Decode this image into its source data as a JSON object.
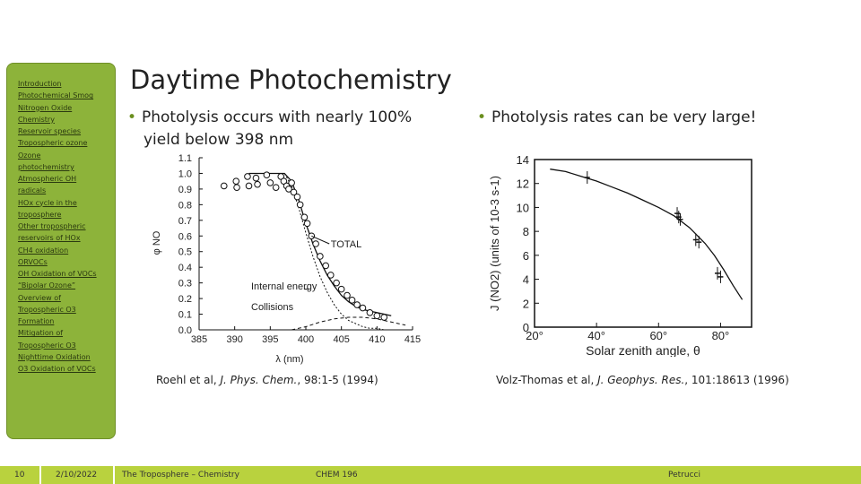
{
  "sidebar": {
    "items": [
      {
        "label": "Introduction"
      },
      {
        "label": "Photochemical Smog"
      },
      {
        "label": "Nitrogen Oxide"
      },
      {
        "label": "Chemistry"
      },
      {
        "label": "Reservoir species"
      },
      {
        "label": "Tropospheric ozone"
      },
      {
        "label": "Ozone"
      },
      {
        "label": "photochemistry"
      },
      {
        "label": "Atmospheric OH"
      },
      {
        "label": "radicals"
      },
      {
        "label": "HOx cycle in the"
      },
      {
        "label": "troposphere"
      },
      {
        "label": "Other tropospheric"
      },
      {
        "label": "reservoirs of HOx"
      },
      {
        "label": "CH4 oxidation"
      },
      {
        "label": "ORVOCs"
      },
      {
        "label": "OH Oxidation of VOCs"
      },
      {
        "label": "“Bipolar Ozone”"
      },
      {
        "label": "Overview of"
      },
      {
        "label": "Tropospheric O3"
      },
      {
        "label": "Formation"
      },
      {
        "label": "Mitigation of"
      },
      {
        "label": "Tropospheric O3"
      },
      {
        "label": "Nighttime Oxidation"
      },
      {
        "label": "O3 Oxidation of VOCs"
      }
    ]
  },
  "slide": {
    "title": "Daytime Photochemistry",
    "bullet1_line1": "Photolysis occurs with nearly 100%",
    "bullet1_line2": "yield below 398 nm",
    "bullet2": "Photolysis rates can be very large!",
    "bullet_glyph": "•",
    "caption1": {
      "pre": "Roehl et al, ",
      "journal": "J. Phys. Chem.",
      "post": ", 98:1-5 (1994)"
    },
    "caption2": {
      "pre": "Volz-Thomas et al, ",
      "journal": "J. Geophys. Res.",
      "post": ", 101:18613 (1996)"
    }
  },
  "footer": {
    "page": "10",
    "date": "2/10/2022",
    "title": "The Troposphere – Chemistry",
    "course": "CHEM 196",
    "author": "Petrucci"
  },
  "colors": {
    "sidebar": "#8db33a",
    "footer": "#b9d23e",
    "accent": "#6b8f1f"
  },
  "chart_data": [
    {
      "type": "scatter",
      "xlabel": "λ (nm)",
      "ylabel": "φ NO",
      "xlim": [
        385,
        415
      ],
      "ylim": [
        0.0,
        1.1
      ],
      "x_ticks": [
        "385",
        "390",
        "395",
        "400",
        "405",
        "410",
        "415"
      ],
      "y_ticks": [
        "0.0",
        "0.1",
        "0.2",
        "0.3",
        "0.4",
        "0.5",
        "0.6",
        "0.7",
        "0.8",
        "0.9",
        "1.0",
        "1.1"
      ],
      "annotations": [
        "TOTAL",
        "Internal energy",
        "Collisions"
      ],
      "points": [
        {
          "x": 388.5,
          "y": 0.92
        },
        {
          "x": 390.2,
          "y": 0.95
        },
        {
          "x": 390.3,
          "y": 0.91
        },
        {
          "x": 391.8,
          "y": 0.98
        },
        {
          "x": 392.0,
          "y": 0.92
        },
        {
          "x": 393.0,
          "y": 0.97
        },
        {
          "x": 393.2,
          "y": 0.93
        },
        {
          "x": 394.5,
          "y": 0.99
        },
        {
          "x": 395.0,
          "y": 0.94
        },
        {
          "x": 395.8,
          "y": 0.91
        },
        {
          "x": 396.5,
          "y": 0.98
        },
        {
          "x": 396.9,
          "y": 0.95
        },
        {
          "x": 397.3,
          "y": 0.92
        },
        {
          "x": 397.6,
          "y": 0.9
        },
        {
          "x": 398.0,
          "y": 0.94
        },
        {
          "x": 398.3,
          "y": 0.88
        },
        {
          "x": 398.8,
          "y": 0.85
        },
        {
          "x": 399.2,
          "y": 0.8
        },
        {
          "x": 399.8,
          "y": 0.72
        },
        {
          "x": 400.2,
          "y": 0.68
        },
        {
          "x": 400.8,
          "y": 0.6
        },
        {
          "x": 401.4,
          "y": 0.55
        },
        {
          "x": 402.0,
          "y": 0.47
        },
        {
          "x": 402.8,
          "y": 0.41
        },
        {
          "x": 403.5,
          "y": 0.35
        },
        {
          "x": 404.3,
          "y": 0.3
        },
        {
          "x": 405.0,
          "y": 0.26
        },
        {
          "x": 405.8,
          "y": 0.22
        },
        {
          "x": 406.5,
          "y": 0.19
        },
        {
          "x": 407.2,
          "y": 0.16
        },
        {
          "x": 408.0,
          "y": 0.14
        },
        {
          "x": 409.0,
          "y": 0.11
        },
        {
          "x": 410.0,
          "y": 0.09
        },
        {
          "x": 411.0,
          "y": 0.08
        }
      ],
      "series": [
        {
          "name": "TOTAL",
          "x": [
            392,
            395,
            397,
            398,
            399,
            400,
            401,
            402,
            403,
            404,
            405,
            406,
            407,
            408,
            409,
            410,
            411,
            412
          ],
          "y": [
            1.0,
            1.0,
            1.0,
            0.95,
            0.83,
            0.68,
            0.55,
            0.44,
            0.35,
            0.28,
            0.22,
            0.18,
            0.15,
            0.13,
            0.12,
            0.11,
            0.1,
            0.09
          ]
        },
        {
          "name": "Internal energy",
          "x": [
            392,
            395,
            397,
            398,
            399,
            400,
            401,
            402,
            403,
            404,
            405,
            406,
            407,
            408,
            409,
            410,
            411,
            412
          ],
          "y": [
            1.0,
            1.0,
            1.0,
            0.92,
            0.78,
            0.62,
            0.47,
            0.34,
            0.24,
            0.16,
            0.1,
            0.06,
            0.04,
            0.02,
            0.01,
            0.01,
            0.0,
            0.0
          ]
        },
        {
          "name": "Collisions",
          "x": [
            398,
            400,
            402,
            404,
            406,
            408,
            410,
            412,
            414
          ],
          "y": [
            0.0,
            0.02,
            0.05,
            0.07,
            0.08,
            0.08,
            0.07,
            0.05,
            0.03
          ]
        }
      ]
    },
    {
      "type": "scatter",
      "xlabel": "Solar zenith angle, θ",
      "ylabel": "J (NO2) (units of 10-3 s-1)",
      "xlim": [
        20,
        90
      ],
      "ylim": [
        0,
        14
      ],
      "x_ticks": [
        "20°",
        "40°",
        "60°",
        "80°"
      ],
      "y_ticks": [
        "0",
        "2",
        "4",
        "6",
        "8",
        "10",
        "12",
        "14"
      ],
      "points": [
        {
          "x": 37,
          "y": 12.5
        },
        {
          "x": 66,
          "y": 9.5
        },
        {
          "x": 66.5,
          "y": 9.2
        },
        {
          "x": 67,
          "y": 9.0
        },
        {
          "x": 72,
          "y": 7.3
        },
        {
          "x": 73,
          "y": 7.1
        },
        {
          "x": 79,
          "y": 4.5
        },
        {
          "x": 80,
          "y": 4.2
        }
      ],
      "series": [
        {
          "name": "",
          "x": [
            25,
            30,
            35,
            40,
            45,
            50,
            55,
            60,
            65,
            70,
            75,
            78,
            81,
            84,
            87
          ],
          "y": [
            13.2,
            13.0,
            12.6,
            12.2,
            11.7,
            11.2,
            10.6,
            10.0,
            9.3,
            8.3,
            7.0,
            6.0,
            4.8,
            3.5,
            2.3
          ]
        }
      ]
    }
  ]
}
